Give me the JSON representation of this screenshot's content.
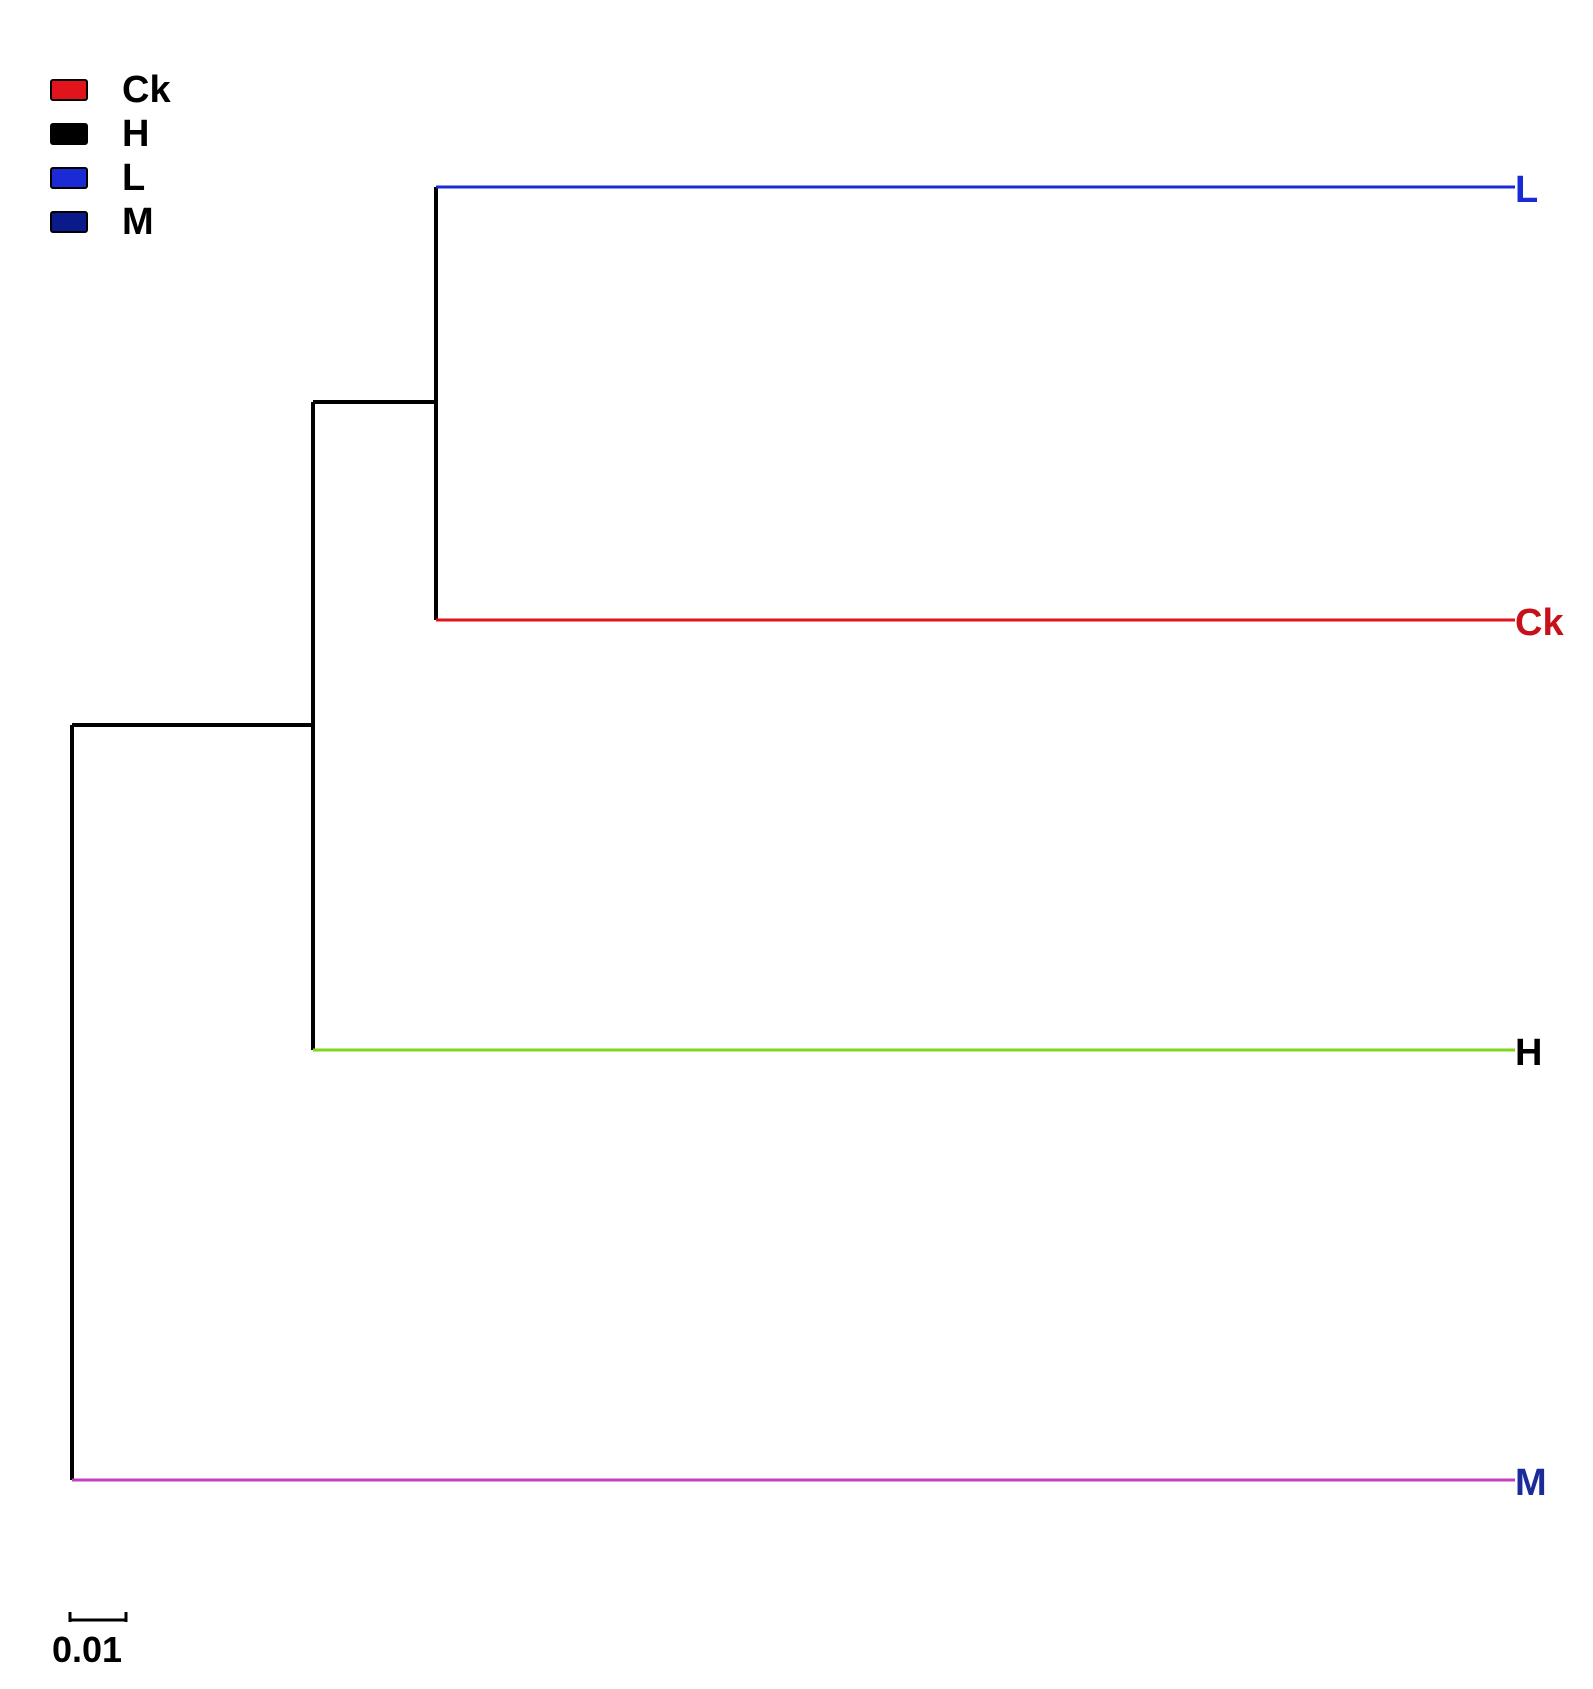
{
  "legend": {
    "items": [
      {
        "label": "Ck",
        "color": "#e0141a"
      },
      {
        "label": "H",
        "color": "#000000"
      },
      {
        "label": "L",
        "color": "#1a2bd6"
      },
      {
        "label": "M",
        "color": "#0a1a8a"
      }
    ]
  },
  "tree": {
    "leaves": [
      {
        "label": "L",
        "branch_color": "#1a2bd6",
        "label_color": "#1a2bd6"
      },
      {
        "label": "Ck",
        "branch_color": "#e0141a",
        "label_color": "#c8101a"
      },
      {
        "label": "H",
        "branch_color": "#7fd61a",
        "label_color": "#000000"
      },
      {
        "label": "M",
        "branch_color": "#c040c0",
        "label_color": "#1a2b9a"
      }
    ],
    "internal_branch_color": "#000000",
    "scale_bar": {
      "label": "0.01",
      "value": 0.01
    }
  }
}
